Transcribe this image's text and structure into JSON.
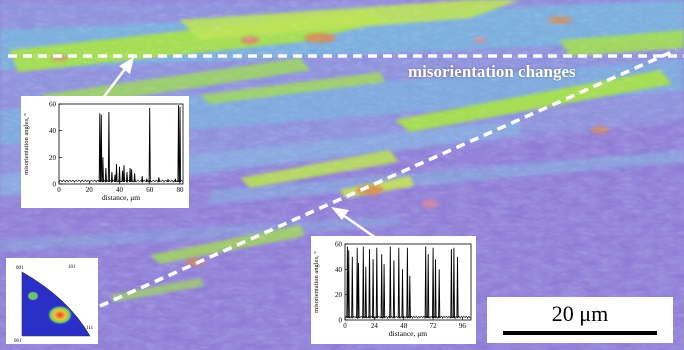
{
  "annotation": {
    "text": "misorientation changes"
  },
  "scalebar": {
    "label": "20 μm"
  },
  "colors": {
    "matrix": "#7a63c9",
    "band_green": "#a6e04e",
    "band_cyan": "#6fc6e0",
    "band_orange": "#d98a52",
    "dashed_line": "#ffffff"
  },
  "inset_left": {
    "ylabel": "misorientation angles, °",
    "xlabel": "distance, μm",
    "y_ticks": [
      "0",
      "20",
      "40",
      "60"
    ],
    "x_ticks": [
      "0",
      "20",
      "40",
      "60",
      "80"
    ],
    "xlim": [
      0,
      82
    ],
    "ylim": [
      0,
      60
    ],
    "peaks": [
      [
        27,
        53
      ],
      [
        28,
        52
      ],
      [
        29,
        20
      ],
      [
        31,
        12
      ],
      [
        33,
        54
      ],
      [
        35,
        9
      ],
      [
        37,
        7
      ],
      [
        38,
        15
      ],
      [
        40,
        13
      ],
      [
        42,
        10
      ],
      [
        43,
        14
      ],
      [
        45,
        9
      ],
      [
        47,
        12
      ],
      [
        48,
        11
      ],
      [
        50,
        8
      ],
      [
        55,
        6
      ],
      [
        58,
        4
      ],
      [
        60,
        57
      ],
      [
        66,
        5
      ],
      [
        72,
        3
      ],
      [
        77,
        4
      ],
      [
        79,
        59
      ],
      [
        80,
        58
      ]
    ]
  },
  "inset_right": {
    "ylabel": "misorientation angles, °",
    "xlabel": "distance, μm",
    "y_ticks": [
      "0",
      "20",
      "40",
      "60"
    ],
    "x_ticks": [
      "0",
      "24",
      "48",
      "72",
      "96"
    ],
    "xlim": [
      0,
      103
    ],
    "ylim": [
      0,
      60
    ],
    "peaks": [
      [
        2,
        58
      ],
      [
        3,
        55
      ],
      [
        6,
        50
      ],
      [
        10,
        57
      ],
      [
        11,
        45
      ],
      [
        15,
        58
      ],
      [
        17,
        42
      ],
      [
        20,
        56
      ],
      [
        23,
        48
      ],
      [
        26,
        57
      ],
      [
        30,
        52
      ],
      [
        32,
        44
      ],
      [
        37,
        58
      ],
      [
        40,
        47
      ],
      [
        44,
        57
      ],
      [
        47,
        40
      ],
      [
        51,
        57
      ],
      [
        53,
        35
      ],
      [
        66,
        58
      ],
      [
        68,
        52
      ],
      [
        72,
        57
      ],
      [
        74,
        48
      ],
      [
        77,
        40
      ],
      [
        87,
        56
      ],
      [
        89,
        57
      ],
      [
        92,
        50
      ]
    ]
  },
  "pole_figure": {
    "corner_labels": [
      "001",
      "101",
      "111",
      "001"
    ]
  }
}
